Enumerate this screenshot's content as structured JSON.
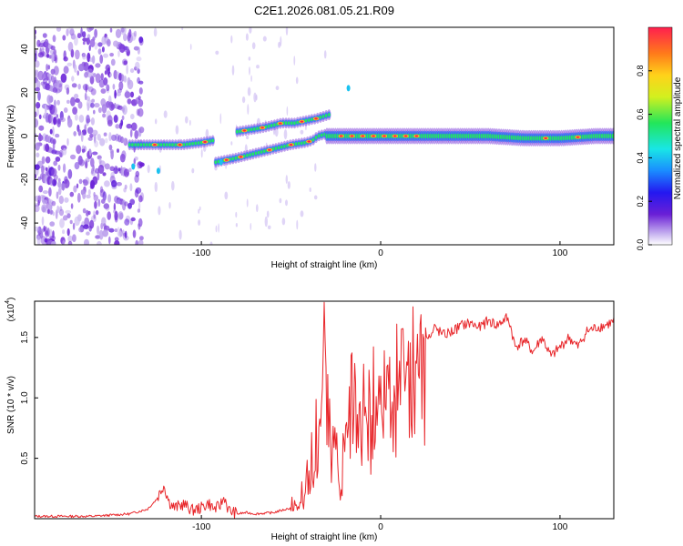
{
  "figure_title": "C2E1.2026.081.05.21.R09",
  "chart_data": [
    {
      "type": "heatmap",
      "title": "C2E1.2026.081.05.21.R09",
      "xlabel": "Height of straight line (km)",
      "ylabel": "Frequency (Hz)",
      "xlim": [
        -193,
        130
      ],
      "ylim": [
        -50,
        50
      ],
      "xticks": [
        -100,
        0,
        100
      ],
      "yticks": [
        -40,
        -20,
        0,
        20,
        40
      ],
      "colorbar": {
        "label": "Normalized spectral amplitude",
        "range": [
          0,
          1
        ],
        "ticks": [
          0.0,
          0.2,
          0.4,
          0.6,
          0.8
        ],
        "colormap": [
          "#ffffff",
          "#c7b3f0",
          "#6a1fd6",
          "#2418f0",
          "#1a8cff",
          "#19e6e6",
          "#22e65a",
          "#d2f01f",
          "#ffd21a",
          "#ff7a1a",
          "#ff1f4f"
        ]
      },
      "ridges": [
        {
          "name": "early-branch",
          "x": [
            -140,
            -120,
            -110,
            -100,
            -93
          ],
          "y": [
            -4,
            -4,
            -4,
            -3,
            -2
          ]
        },
        {
          "name": "lower-branch",
          "x": [
            -92,
            -80,
            -70,
            -60,
            -50,
            -42,
            -38,
            -35,
            -30
          ],
          "y": [
            -12,
            -10,
            -8,
            -6,
            -4,
            -3,
            -2,
            0,
            1
          ]
        },
        {
          "name": "upper-branch",
          "x": [
            -80,
            -72,
            -65,
            -55,
            -48,
            -42,
            -36,
            -32,
            -28
          ],
          "y": [
            2,
            3,
            4,
            6,
            6,
            7,
            8,
            9,
            10
          ]
        },
        {
          "name": "main-line",
          "x": [
            -30,
            -20,
            0,
            20,
            40,
            60,
            80,
            100,
            120,
            130
          ],
          "y": [
            0,
            0,
            0,
            0,
            0,
            0,
            -1,
            -1,
            0,
            0
          ]
        }
      ]
    },
    {
      "type": "line",
      "xlabel": "Height of straight line (km)",
      "ylabel": "SNR (10 * v/v)",
      "y_multiplier": "(x10",
      "y_multiplier_exp": "4",
      "xlim": [
        -193,
        130
      ],
      "ylim": [
        0,
        1.8
      ],
      "xticks": [
        -100,
        0,
        100
      ],
      "yticks": [
        0.5,
        1.0,
        1.5
      ],
      "ytick_labels": [
        "0.5",
        "1.0",
        "1.5"
      ],
      "series": [
        {
          "name": "SNR",
          "color": "#e8262a",
          "x": [
            -193,
            -180,
            -160,
            -150,
            -140,
            -130,
            -125,
            -121,
            -118,
            -115,
            -110,
            -105,
            -100,
            -96,
            -93,
            -90,
            -87,
            -85,
            -80,
            -75,
            -70,
            -60,
            -55,
            -50,
            -45,
            -42,
            -40,
            -38,
            -36,
            -34,
            -32,
            -30,
            -28,
            -26,
            -24,
            -22,
            -20,
            -18,
            -16,
            -14,
            -12,
            -10,
            -8,
            -6,
            -4,
            -2,
            0,
            2,
            4,
            6,
            8,
            10,
            12,
            15,
            18,
            20,
            22,
            25,
            28,
            30,
            35,
            40,
            45,
            50,
            55,
            60,
            65,
            70,
            72,
            75,
            80,
            85,
            90,
            95,
            100,
            105,
            110,
            115,
            120,
            125,
            130
          ],
          "y": [
            0.02,
            0.02,
            0.02,
            0.03,
            0.04,
            0.08,
            0.16,
            0.28,
            0.14,
            0.09,
            0.12,
            0.07,
            0.09,
            0.13,
            0.08,
            0.1,
            0.18,
            0.07,
            0.04,
            0.05,
            0.04,
            0.05,
            0.07,
            0.09,
            0.17,
            0.26,
            0.38,
            0.55,
            0.8,
            1.2,
            1.78,
            1.05,
            0.55,
            1.1,
            0.45,
            0.3,
            0.9,
            1.0,
            0.95,
            1.05,
            1.0,
            1.1,
            1.15,
            0.9,
            1.2,
            1.05,
            1.25,
            1.15,
            1.3,
            1.1,
            1.35,
            1.4,
            1.45,
            1.3,
            1.48,
            1.35,
            1.42,
            1.55,
            1.5,
            1.58,
            1.52,
            1.55,
            1.6,
            1.62,
            1.58,
            1.64,
            1.6,
            1.66,
            1.62,
            1.42,
            1.48,
            1.38,
            1.5,
            1.34,
            1.42,
            1.5,
            1.42,
            1.55,
            1.58,
            1.6,
            1.63
          ]
        }
      ]
    }
  ]
}
